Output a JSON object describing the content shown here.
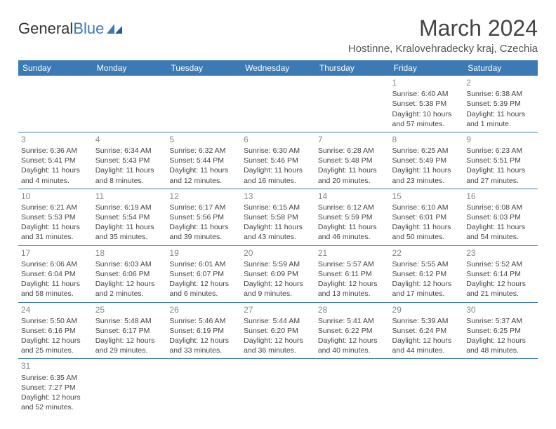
{
  "logo": {
    "text1": "General",
    "text2": "Blue"
  },
  "title": "March 2024",
  "location": "Hostinne, Kralovehradecky kraj, Czechia",
  "weekdays": [
    "Sunday",
    "Monday",
    "Tuesday",
    "Wednesday",
    "Thursday",
    "Friday",
    "Saturday"
  ],
  "colors": {
    "header_bg": "#3b7ab5",
    "border": "#3b7ab5"
  },
  "days": [
    {
      "n": "1",
      "sr": "Sunrise: 6:40 AM",
      "ss": "Sunset: 5:38 PM",
      "dl": "Daylight: 10 hours and 57 minutes."
    },
    {
      "n": "2",
      "sr": "Sunrise: 6:38 AM",
      "ss": "Sunset: 5:39 PM",
      "dl": "Daylight: 11 hours and 1 minute."
    },
    {
      "n": "3",
      "sr": "Sunrise: 6:36 AM",
      "ss": "Sunset: 5:41 PM",
      "dl": "Daylight: 11 hours and 4 minutes."
    },
    {
      "n": "4",
      "sr": "Sunrise: 6:34 AM",
      "ss": "Sunset: 5:43 PM",
      "dl": "Daylight: 11 hours and 8 minutes."
    },
    {
      "n": "5",
      "sr": "Sunrise: 6:32 AM",
      "ss": "Sunset: 5:44 PM",
      "dl": "Daylight: 11 hours and 12 minutes."
    },
    {
      "n": "6",
      "sr": "Sunrise: 6:30 AM",
      "ss": "Sunset: 5:46 PM",
      "dl": "Daylight: 11 hours and 16 minutes."
    },
    {
      "n": "7",
      "sr": "Sunrise: 6:28 AM",
      "ss": "Sunset: 5:48 PM",
      "dl": "Daylight: 11 hours and 20 minutes."
    },
    {
      "n": "8",
      "sr": "Sunrise: 6:25 AM",
      "ss": "Sunset: 5:49 PM",
      "dl": "Daylight: 11 hours and 23 minutes."
    },
    {
      "n": "9",
      "sr": "Sunrise: 6:23 AM",
      "ss": "Sunset: 5:51 PM",
      "dl": "Daylight: 11 hours and 27 minutes."
    },
    {
      "n": "10",
      "sr": "Sunrise: 6:21 AM",
      "ss": "Sunset: 5:53 PM",
      "dl": "Daylight: 11 hours and 31 minutes."
    },
    {
      "n": "11",
      "sr": "Sunrise: 6:19 AM",
      "ss": "Sunset: 5:54 PM",
      "dl": "Daylight: 11 hours and 35 minutes."
    },
    {
      "n": "12",
      "sr": "Sunrise: 6:17 AM",
      "ss": "Sunset: 5:56 PM",
      "dl": "Daylight: 11 hours and 39 minutes."
    },
    {
      "n": "13",
      "sr": "Sunrise: 6:15 AM",
      "ss": "Sunset: 5:58 PM",
      "dl": "Daylight: 11 hours and 43 minutes."
    },
    {
      "n": "14",
      "sr": "Sunrise: 6:12 AM",
      "ss": "Sunset: 5:59 PM",
      "dl": "Daylight: 11 hours and 46 minutes."
    },
    {
      "n": "15",
      "sr": "Sunrise: 6:10 AM",
      "ss": "Sunset: 6:01 PM",
      "dl": "Daylight: 11 hours and 50 minutes."
    },
    {
      "n": "16",
      "sr": "Sunrise: 6:08 AM",
      "ss": "Sunset: 6:03 PM",
      "dl": "Daylight: 11 hours and 54 minutes."
    },
    {
      "n": "17",
      "sr": "Sunrise: 6:06 AM",
      "ss": "Sunset: 6:04 PM",
      "dl": "Daylight: 11 hours and 58 minutes."
    },
    {
      "n": "18",
      "sr": "Sunrise: 6:03 AM",
      "ss": "Sunset: 6:06 PM",
      "dl": "Daylight: 12 hours and 2 minutes."
    },
    {
      "n": "19",
      "sr": "Sunrise: 6:01 AM",
      "ss": "Sunset: 6:07 PM",
      "dl": "Daylight: 12 hours and 6 minutes."
    },
    {
      "n": "20",
      "sr": "Sunrise: 5:59 AM",
      "ss": "Sunset: 6:09 PM",
      "dl": "Daylight: 12 hours and 9 minutes."
    },
    {
      "n": "21",
      "sr": "Sunrise: 5:57 AM",
      "ss": "Sunset: 6:11 PM",
      "dl": "Daylight: 12 hours and 13 minutes."
    },
    {
      "n": "22",
      "sr": "Sunrise: 5:55 AM",
      "ss": "Sunset: 6:12 PM",
      "dl": "Daylight: 12 hours and 17 minutes."
    },
    {
      "n": "23",
      "sr": "Sunrise: 5:52 AM",
      "ss": "Sunset: 6:14 PM",
      "dl": "Daylight: 12 hours and 21 minutes."
    },
    {
      "n": "24",
      "sr": "Sunrise: 5:50 AM",
      "ss": "Sunset: 6:16 PM",
      "dl": "Daylight: 12 hours and 25 minutes."
    },
    {
      "n": "25",
      "sr": "Sunrise: 5:48 AM",
      "ss": "Sunset: 6:17 PM",
      "dl": "Daylight: 12 hours and 29 minutes."
    },
    {
      "n": "26",
      "sr": "Sunrise: 5:46 AM",
      "ss": "Sunset: 6:19 PM",
      "dl": "Daylight: 12 hours and 33 minutes."
    },
    {
      "n": "27",
      "sr": "Sunrise: 5:44 AM",
      "ss": "Sunset: 6:20 PM",
      "dl": "Daylight: 12 hours and 36 minutes."
    },
    {
      "n": "28",
      "sr": "Sunrise: 5:41 AM",
      "ss": "Sunset: 6:22 PM",
      "dl": "Daylight: 12 hours and 40 minutes."
    },
    {
      "n": "29",
      "sr": "Sunrise: 5:39 AM",
      "ss": "Sunset: 6:24 PM",
      "dl": "Daylight: 12 hours and 44 minutes."
    },
    {
      "n": "30",
      "sr": "Sunrise: 5:37 AM",
      "ss": "Sunset: 6:25 PM",
      "dl": "Daylight: 12 hours and 48 minutes."
    },
    {
      "n": "31",
      "sr": "Sunrise: 6:35 AM",
      "ss": "Sunset: 7:27 PM",
      "dl": "Daylight: 12 hours and 52 minutes."
    }
  ]
}
